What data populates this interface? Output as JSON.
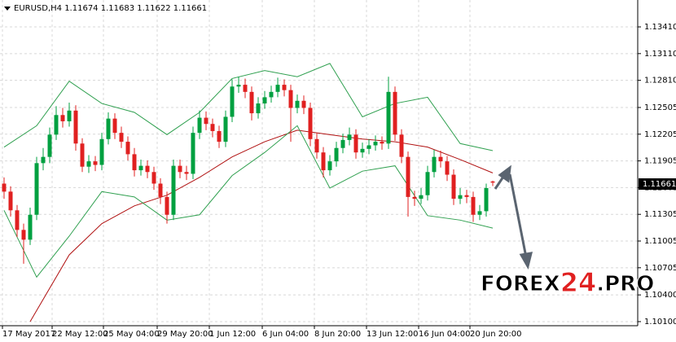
{
  "chart_data": {
    "type": "candlestick",
    "title": "EURUSD,H4  1.11674 1.11683 1.11622 1.11661",
    "last_price": {
      "value": 1.11661,
      "label": "1.11661"
    },
    "x_labels": [
      "17 May 2017",
      "22 May 12:00",
      "25 May 04:00",
      "29 May 20:00",
      "1 Jun 12:00",
      "6 Jun 04:00",
      "8 Jun 20:00",
      "13 Jun 12:00",
      "16 Jun 04:00",
      "20 Jun 20:00"
    ],
    "up_color": "#00a040",
    "down_color": "#e02020",
    "open": [
      1.1165,
      1.1156,
      1.1135,
      1.1113,
      1.1102,
      1.113,
      1.1188,
      1.1195,
      1.122,
      1.1242,
      1.1235,
      1.1247,
      1.121,
      1.1184,
      1.119,
      1.1186,
      1.1215,
      1.1238,
      1.1222,
      1.1212,
      1.1198,
      1.118,
      1.1185,
      1.1178,
      1.1165,
      1.115,
      1.113,
      1.1185,
      1.1178,
      1.1176,
      1.1222,
      1.1239,
      1.1232,
      1.1224,
      1.1212,
      1.124,
      1.1274,
      1.1276,
      1.1268,
      1.1244,
      1.1255,
      1.1262,
      1.1268,
      1.1276,
      1.127,
      1.125,
      1.1258,
      1.125,
      1.1215,
      1.12,
      1.118,
      1.119,
      1.1205,
      1.1214,
      1.122,
      1.12,
      1.1204,
      1.1208,
      1.1212,
      1.121,
      1.1268,
      1.122,
      1.1195,
      1.115,
      1.1148,
      1.1152,
      1.1178,
      1.1195,
      1.119,
      1.1175,
      1.1148,
      1.1152,
      1.115,
      1.113,
      1.1134,
      1.11674
    ],
    "high": [
      1.1172,
      1.1162,
      1.1141,
      1.112,
      1.1138,
      1.1195,
      1.1205,
      1.1228,
      1.1252,
      1.125,
      1.1256,
      1.1253,
      1.1216,
      1.1197,
      1.1196,
      1.1222,
      1.1245,
      1.1244,
      1.1229,
      1.1218,
      1.1205,
      1.1192,
      1.1191,
      1.1184,
      1.1171,
      1.1156,
      1.1192,
      1.1192,
      1.1185,
      1.1229,
      1.1247,
      1.1246,
      1.1238,
      1.123,
      1.1247,
      1.1282,
      1.1285,
      1.1283,
      1.1274,
      1.1262,
      1.1269,
      1.1275,
      1.1284,
      1.1282,
      1.1276,
      1.1265,
      1.1264,
      1.1256,
      1.1222,
      1.1206,
      1.1197,
      1.1212,
      1.1221,
      1.1228,
      1.1226,
      1.1211,
      1.1215,
      1.1219,
      1.1218,
      1.1285,
      1.1274,
      1.1226,
      1.1201,
      1.1157,
      1.116,
      1.1185,
      1.1203,
      1.1202,
      1.1196,
      1.1181,
      1.116,
      1.1158,
      1.1156,
      1.1141,
      1.1165,
      1.11683
    ],
    "low": [
      1.1148,
      1.1128,
      1.1105,
      1.1075,
      1.1096,
      1.1124,
      1.118,
      1.1188,
      1.1214,
      1.1228,
      1.1229,
      1.1202,
      1.1178,
      1.1177,
      1.1179,
      1.118,
      1.1209,
      1.1215,
      1.1205,
      1.1191,
      1.1173,
      1.1174,
      1.1171,
      1.1158,
      1.1142,
      1.112,
      1.1124,
      1.1171,
      1.1169,
      1.117,
      1.1215,
      1.1225,
      1.1217,
      1.1205,
      1.1206,
      1.1234,
      1.1267,
      1.1261,
      1.1236,
      1.1238,
      1.1249,
      1.1256,
      1.1262,
      1.1263,
      1.1212,
      1.1244,
      1.1243,
      1.1207,
      1.1193,
      1.1172,
      1.1174,
      1.1184,
      1.1199,
      1.1208,
      1.1193,
      1.1194,
      1.1198,
      1.1202,
      1.1203,
      1.1204,
      1.1213,
      1.1188,
      1.1128,
      1.114,
      1.1142,
      1.1146,
      1.1172,
      1.1183,
      1.1168,
      1.1141,
      1.1142,
      1.1143,
      1.1122,
      1.1124,
      1.1128,
      1.11622
    ],
    "close": [
      1.1156,
      1.1135,
      1.1113,
      1.1102,
      1.113,
      1.1188,
      1.1195,
      1.122,
      1.1242,
      1.1235,
      1.1247,
      1.121,
      1.1184,
      1.119,
      1.1186,
      1.1215,
      1.1238,
      1.1222,
      1.1212,
      1.1198,
      1.118,
      1.1185,
      1.1178,
      1.1165,
      1.115,
      1.113,
      1.1185,
      1.1178,
      1.1176,
      1.1222,
      1.1239,
      1.1232,
      1.1224,
      1.1212,
      1.124,
      1.1274,
      1.1276,
      1.1268,
      1.1244,
      1.1255,
      1.1262,
      1.1268,
      1.1276,
      1.127,
      1.125,
      1.1258,
      1.125,
      1.1215,
      1.12,
      1.118,
      1.119,
      1.1205,
      1.1214,
      1.122,
      1.12,
      1.1204,
      1.1208,
      1.1212,
      1.121,
      1.1268,
      1.122,
      1.1195,
      1.115,
      1.1148,
      1.1152,
      1.1178,
      1.1195,
      1.119,
      1.1175,
      1.1148,
      1.1152,
      1.115,
      1.113,
      1.1134,
      1.116,
      1.11661
    ],
    "series": [
      {
        "color": "#b01010",
        "x": [
          4,
          10,
          15,
          20,
          25,
          30,
          35,
          40,
          45,
          50,
          55,
          60,
          65,
          70,
          75
        ],
        "values": [
          1.101,
          1.1085,
          1.112,
          1.114,
          1.1152,
          1.1172,
          1.1195,
          1.1212,
          1.1225,
          1.122,
          1.1215,
          1.1212,
          1.1206,
          1.1192,
          1.1177
        ]
      },
      {
        "color": "#30a050",
        "x": [
          0,
          5,
          10,
          15,
          20,
          25,
          30,
          35,
          40,
          45,
          50,
          55,
          60,
          65,
          70,
          75
        ],
        "values": [
          1.1206,
          1.123,
          1.128,
          1.1255,
          1.1245,
          1.122,
          1.1245,
          1.1283,
          1.1292,
          1.1285,
          1.13,
          1.124,
          1.1255,
          1.1262,
          1.121,
          1.1202
        ]
      },
      {
        "color": "#30a050",
        "x": [
          0,
          5,
          10,
          15,
          20,
          25,
          30,
          35,
          40,
          45,
          50,
          55,
          60,
          65,
          70,
          75
        ],
        "values": [
          1.1135,
          1.106,
          1.1106,
          1.1156,
          1.115,
          1.1124,
          1.113,
          1.1174,
          1.12,
          1.123,
          1.116,
          1.1179,
          1.1185,
          1.1129,
          1.1124,
          1.1115
        ]
      }
    ],
    "ylim": [
      1.10054,
      1.13712
    ],
    "yticks": [
      {
        "value": 1.1341,
        "label": "1.13410"
      },
      {
        "value": 1.1311,
        "label": "1.13110"
      },
      {
        "value": 1.1281,
        "label": "1.12810"
      },
      {
        "value": 1.12505,
        "label": "1.12505"
      },
      {
        "value": 1.12205,
        "label": "1.12205"
      },
      {
        "value": 1.11905,
        "label": "1.11905"
      },
      {
        "value": 1.11605,
        "label": "1.11605"
      },
      {
        "value": 1.11305,
        "label": "1.11305"
      },
      {
        "value": 1.11005,
        "label": "1.11005"
      },
      {
        "value": 1.10705,
        "label": "1.10705"
      },
      {
        "value": 1.104,
        "label": "1.10400"
      },
      {
        "value": 1.101,
        "label": "1.10100"
      }
    ],
    "grid": true,
    "watermark": {
      "part1": "FOREX",
      "part2": "24",
      "part3": ".PRO"
    }
  }
}
